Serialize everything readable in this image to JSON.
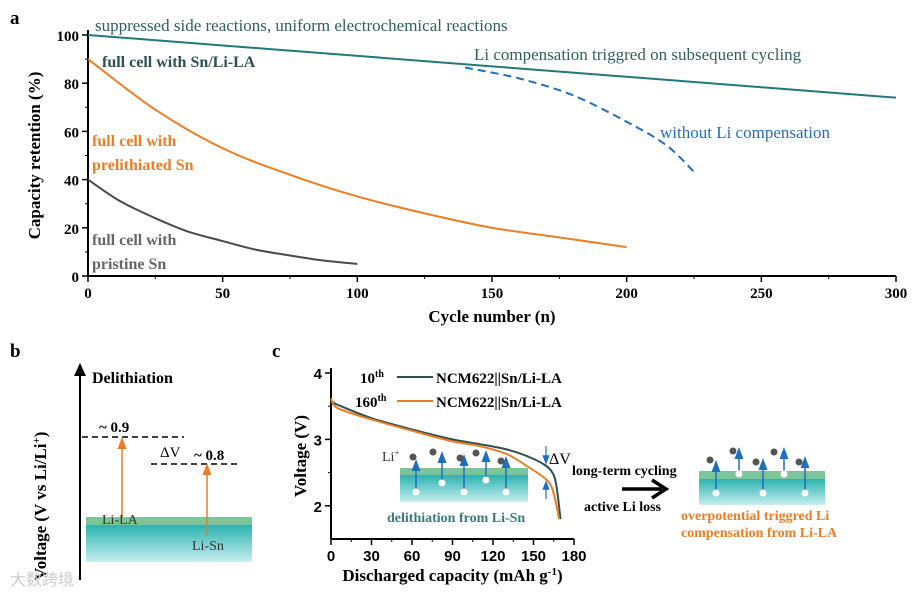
{
  "panel_labels": {
    "a": "a",
    "b": "b",
    "c": "c"
  },
  "chart_data": [
    {
      "type": "line",
      "id": "a",
      "xlabel": "Cycle number (n)",
      "ylabel": "Capacity retention (%)",
      "xlim": [
        0,
        300
      ],
      "ylim": [
        0,
        100
      ],
      "xticks": [
        0,
        50,
        100,
        150,
        200,
        250,
        300
      ],
      "yticks": [
        0,
        20,
        40,
        60,
        80,
        100
      ],
      "series": [
        {
          "name": "full cell with Sn/Li-LA",
          "color": "#1f7a7a",
          "dashed": false,
          "x": [
            0,
            300
          ],
          "y": [
            100,
            74
          ]
        },
        {
          "name": "without Li compensation",
          "color": "#1f6fbf",
          "dashed": true,
          "x": [
            140,
            160,
            180,
            200,
            215,
            226
          ],
          "y": [
            86.5,
            82,
            75,
            64,
            54,
            42
          ]
        },
        {
          "name": "full cell with prelithiated Sn",
          "color": "#ed7d22",
          "dashed": false,
          "x": [
            0,
            25,
            50,
            75,
            100,
            125,
            150,
            175,
            200
          ],
          "y": [
            90,
            69,
            53,
            42,
            33,
            26,
            20,
            16,
            12
          ]
        },
        {
          "name": "full cell with pristine Sn",
          "color": "#4a4a4a",
          "dashed": false,
          "x": [
            0,
            12,
            25,
            37,
            50,
            62,
            75,
            87,
            100
          ],
          "y": [
            40,
            31,
            24,
            18.5,
            14.5,
            11,
            8.5,
            6.5,
            5
          ]
        }
      ],
      "annotations": {
        "top": "suppressed side reactions, uniform electrochemical reactions",
        "teal": "full cell with Sn/Li-LA",
        "comp": "Li compensation triggred on subsequent cycling",
        "without": "without Li compensation",
        "orange1": "full cell with",
        "orange2": "prelithiated Sn",
        "gray1": "full cell with",
        "gray2": "pristine Sn"
      }
    },
    {
      "type": "line",
      "id": "c",
      "xlabel": "Discharged capacity (mAh g",
      "xlabel_sup": "-1",
      "xlabel_end": ")",
      "ylabel": "Voltage (V)",
      "xlim": [
        0,
        180
      ],
      "ylim": [
        1.5,
        4
      ],
      "xticks": [
        0,
        30,
        60,
        90,
        120,
        150,
        180
      ],
      "yticks": [
        2,
        3,
        4
      ],
      "series": [
        {
          "name": "NCM622||Sn/Li-LA",
          "cycle": "10",
          "sup": "th",
          "color": "#2f4f4f",
          "x": [
            0,
            5,
            30,
            60,
            90,
            110,
            130,
            145,
            158,
            164,
            167,
            170
          ],
          "y": [
            3.58,
            3.52,
            3.32,
            3.15,
            3.0,
            2.93,
            2.85,
            2.75,
            2.62,
            2.5,
            2.3,
            1.8
          ]
        },
        {
          "name": "NCM622||Sn/Li-LA",
          "cycle": "160",
          "sup": "th",
          "color": "#ed7d22",
          "x": [
            0,
            5,
            30,
            60,
            90,
            110,
            130,
            145,
            158,
            163,
            166,
            169
          ],
          "y": [
            3.62,
            3.47,
            3.3,
            3.13,
            2.97,
            2.9,
            2.78,
            2.6,
            2.42,
            2.3,
            2.1,
            1.8
          ]
        }
      ],
      "annotations": {
        "dv": "ΔV",
        "li": "Li",
        "li_sup": "+",
        "inset": "delithiation from Li-Sn"
      }
    }
  ],
  "panel_b": {
    "ylabel": "Voltage (V vs Li/Li",
    "ylabel_sup": "+",
    "ylabel_end": ")",
    "arrow_label": "Delithiation",
    "v1": "~ 0.9",
    "v2": "~ 0.8",
    "dv": "ΔV",
    "layer1": "Li-LA",
    "layer2": "Li-Sn"
  },
  "right": {
    "arrow_top": "long-term cycling",
    "arrow_bottom": "active Li loss",
    "caption1": "overpotential triggred Li",
    "caption2": "compensation from Li-LA"
  },
  "watermark": "大数跨境"
}
